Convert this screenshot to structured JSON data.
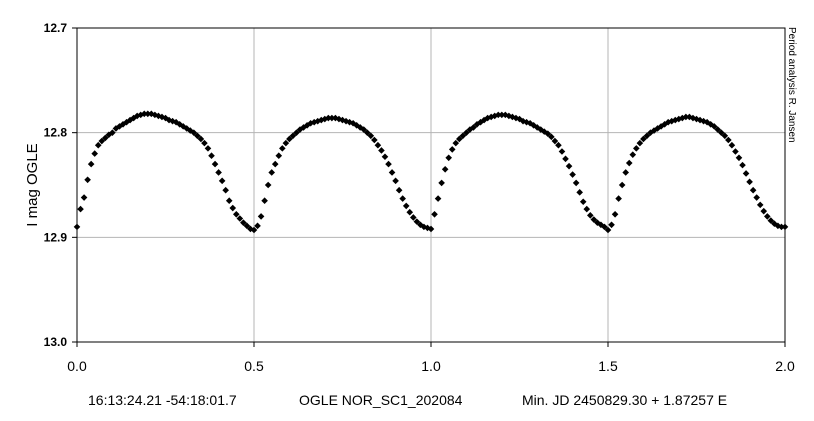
{
  "chart_data": {
    "type": "scatter",
    "title": "",
    "xlabel": "",
    "ylabel": "I mag OGLE",
    "xlim": [
      0.0,
      2.0
    ],
    "ylim": [
      12.7,
      13.0
    ],
    "y_inverted": true,
    "grid": true,
    "x_ticks": [
      "0.0",
      "0.5",
      "1.0",
      "1.5",
      "2.0"
    ],
    "y_ticks": [
      "12.7",
      "12.8",
      "12.9",
      "13.0"
    ],
    "marker": "diamond",
    "marker_color": "#000000",
    "series": [
      {
        "x": [
          0.0,
          0.01,
          0.02,
          0.03,
          0.04,
          0.05,
          0.06,
          0.07,
          0.08,
          0.09,
          0.1,
          0.11,
          0.12,
          0.13,
          0.14,
          0.15,
          0.16,
          0.17,
          0.18,
          0.19,
          0.2,
          0.21,
          0.22,
          0.23,
          0.24,
          0.25,
          0.26,
          0.27,
          0.28,
          0.29,
          0.3,
          0.31,
          0.32,
          0.33,
          0.34,
          0.35,
          0.36,
          0.37,
          0.38,
          0.39,
          0.4,
          0.41,
          0.42,
          0.43,
          0.44,
          0.45,
          0.46,
          0.47,
          0.48,
          0.49,
          0.5,
          0.51,
          0.52,
          0.53,
          0.54,
          0.55,
          0.56,
          0.57,
          0.58,
          0.59,
          0.6,
          0.61,
          0.62,
          0.63,
          0.64,
          0.65,
          0.66,
          0.67,
          0.68,
          0.69,
          0.7,
          0.71,
          0.72,
          0.73,
          0.74,
          0.75,
          0.76,
          0.77,
          0.78,
          0.79,
          0.8,
          0.81,
          0.82,
          0.83,
          0.84,
          0.85,
          0.86,
          0.87,
          0.88,
          0.89,
          0.9,
          0.91,
          0.92,
          0.93,
          0.94,
          0.95,
          0.96,
          0.97,
          0.98,
          0.99
        ],
        "y": [
          12.89,
          12.873,
          12.862,
          12.845,
          12.83,
          12.82,
          12.812,
          12.808,
          12.805,
          12.802,
          12.8,
          12.796,
          12.794,
          12.792,
          12.79,
          12.788,
          12.786,
          12.784,
          12.783,
          12.782,
          12.782,
          12.782,
          12.783,
          12.784,
          12.785,
          12.786,
          12.788,
          12.789,
          12.79,
          12.792,
          12.794,
          12.796,
          12.798,
          12.8,
          12.803,
          12.806,
          12.81,
          12.815,
          12.822,
          12.83,
          12.838,
          12.846,
          12.855,
          12.865,
          12.872,
          12.878,
          12.882,
          12.886,
          12.889,
          12.892,
          12.893,
          12.889,
          12.88,
          12.865,
          12.85,
          12.838,
          12.83,
          12.822,
          12.815,
          12.81,
          12.806,
          12.803,
          12.8,
          12.797,
          12.795,
          12.793,
          12.791,
          12.79,
          12.789,
          12.788,
          12.787,
          12.786,
          12.786,
          12.786,
          12.787,
          12.788,
          12.789,
          12.79,
          12.791,
          12.793,
          12.795,
          12.797,
          12.8,
          12.803,
          12.807,
          12.812,
          12.817,
          12.823,
          12.83,
          12.838,
          12.846,
          12.855,
          12.863,
          12.87,
          12.876,
          12.881,
          12.885,
          12.888,
          12.89,
          12.891
        ]
      },
      {
        "x": [
          1.0,
          1.01,
          1.02,
          1.03,
          1.04,
          1.05,
          1.06,
          1.07,
          1.08,
          1.09,
          1.1,
          1.11,
          1.12,
          1.13,
          1.14,
          1.15,
          1.16,
          1.17,
          1.18,
          1.19,
          1.2,
          1.21,
          1.22,
          1.23,
          1.24,
          1.25,
          1.26,
          1.27,
          1.28,
          1.29,
          1.3,
          1.31,
          1.32,
          1.33,
          1.34,
          1.35,
          1.36,
          1.37,
          1.38,
          1.39,
          1.4,
          1.41,
          1.42,
          1.43,
          1.44,
          1.45,
          1.46,
          1.47,
          1.48,
          1.49,
          1.5,
          1.51,
          1.52,
          1.53,
          1.54,
          1.55,
          1.56,
          1.57,
          1.58,
          1.59,
          1.6,
          1.61,
          1.62,
          1.63,
          1.64,
          1.65,
          1.66,
          1.67,
          1.68,
          1.69,
          1.7,
          1.71,
          1.72,
          1.73,
          1.74,
          1.75,
          1.76,
          1.77,
          1.78,
          1.79,
          1.8,
          1.81,
          1.82,
          1.83,
          1.84,
          1.85,
          1.86,
          1.87,
          1.88,
          1.89,
          1.9,
          1.91,
          1.92,
          1.93,
          1.94,
          1.95,
          1.96,
          1.97,
          1.98,
          1.99,
          2.0
        ],
        "y": [
          12.892,
          12.878,
          12.863,
          12.848,
          12.835,
          12.824,
          12.816,
          12.81,
          12.806,
          12.803,
          12.8,
          12.797,
          12.795,
          12.792,
          12.79,
          12.788,
          12.786,
          12.785,
          12.784,
          12.783,
          12.783,
          12.783,
          12.784,
          12.785,
          12.786,
          12.787,
          12.789,
          12.79,
          12.791,
          12.793,
          12.795,
          12.797,
          12.799,
          12.801,
          12.804,
          12.808,
          12.812,
          12.818,
          12.825,
          12.832,
          12.84,
          12.848,
          12.857,
          12.866,
          12.873,
          12.879,
          12.883,
          12.886,
          12.888,
          12.89,
          12.893,
          12.888,
          12.878,
          12.863,
          12.85,
          12.838,
          12.829,
          12.821,
          12.815,
          12.81,
          12.806,
          12.803,
          12.8,
          12.798,
          12.796,
          12.794,
          12.792,
          12.79,
          12.789,
          12.788,
          12.787,
          12.786,
          12.785,
          12.785,
          12.786,
          12.787,
          12.788,
          12.789,
          12.79,
          12.792,
          12.794,
          12.797,
          12.8,
          12.803,
          12.807,
          12.812,
          12.818,
          12.824,
          12.831,
          12.839,
          12.847,
          12.855,
          12.862,
          12.869,
          12.875,
          12.88,
          12.884,
          12.887,
          12.889,
          12.89,
          12.89
        ]
      }
    ]
  },
  "credit": "Period analysis  R. Jansen",
  "footer": {
    "coordinates": "16:13:24.21 -54:18:01.7",
    "object": "OGLE NOR_SC1_202084",
    "ephemeris": "Min. JD 2450829.30 + 1.87257 E"
  }
}
